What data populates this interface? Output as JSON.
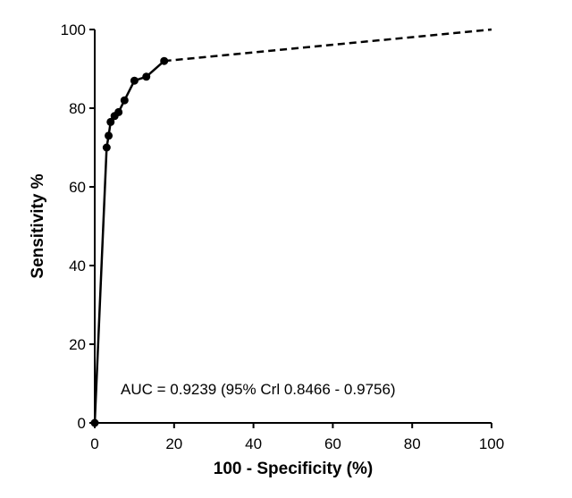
{
  "chart_data": {
    "type": "line",
    "title": "",
    "xlabel": "100 - Specificity (%)",
    "ylabel": "Sensitivity %",
    "xlim": [
      0,
      100
    ],
    "ylim": [
      0,
      100
    ],
    "x_ticks": [
      0,
      20,
      40,
      60,
      80,
      100
    ],
    "y_ticks": [
      0,
      20,
      40,
      60,
      80,
      100
    ],
    "grid": false,
    "annotation": "AUC = 0.9239 (95% Crl 0.8466 - 0.9756)",
    "series": [
      {
        "style": "solid-with-markers",
        "points": [
          {
            "x": 0,
            "y": 0
          },
          {
            "x": 3,
            "y": 70
          },
          {
            "x": 3.5,
            "y": 73
          },
          {
            "x": 4,
            "y": 76.5
          },
          {
            "x": 5,
            "y": 78
          },
          {
            "x": 6,
            "y": 79
          },
          {
            "x": 7.5,
            "y": 82
          },
          {
            "x": 10,
            "y": 87
          },
          {
            "x": 13,
            "y": 88
          },
          {
            "x": 17.5,
            "y": 92
          }
        ]
      },
      {
        "style": "dashed",
        "points": [
          {
            "x": 17.5,
            "y": 92
          },
          {
            "x": 100,
            "y": 100
          }
        ]
      }
    ],
    "colors": {
      "line": "#000000",
      "marker": "#000000",
      "background": "#ffffff"
    }
  }
}
